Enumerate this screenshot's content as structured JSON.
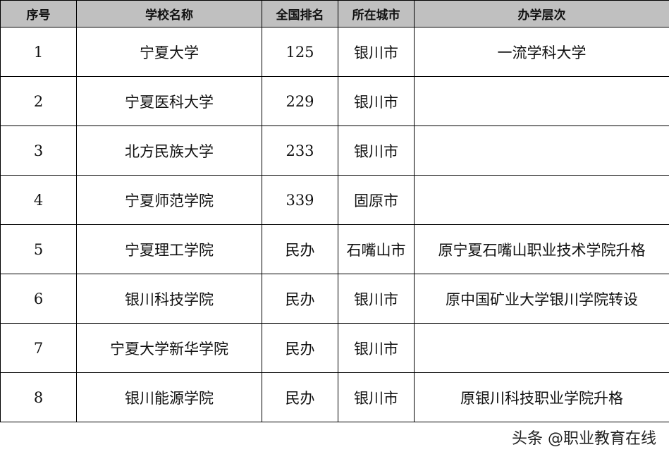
{
  "headers": [
    "序号",
    "学校名称",
    "全国排名",
    "所在城市",
    "办学层次"
  ],
  "rows": [
    [
      "1",
      "宁夏大学",
      "125",
      "银川市",
      "一流学科大学"
    ],
    [
      "2",
      "宁夏医科大学",
      "229",
      "银川市",
      ""
    ],
    [
      "3",
      "北方民族大学",
      "233",
      "银川市",
      ""
    ],
    [
      "4",
      "宁夏师范学院",
      "339",
      "固原市",
      ""
    ],
    [
      "5",
      "宁夏理工学院",
      "民办",
      "石嘴山市",
      "原宁夏石嘴山职业技术学院升格"
    ],
    [
      "6",
      "银川科技学院",
      "民办",
      "银川市",
      "原中国矿业大学银川学院转设"
    ],
    [
      "7",
      "宁夏大学新华学院",
      "民办",
      "银川市",
      ""
    ],
    [
      "8",
      "银川能源学院",
      "民办",
      "银川市",
      "原银川科技职业学院升格"
    ]
  ],
  "watermark": "头条 @职业教育在线",
  "colors": {
    "header_bg": "#c0c0c0"
  }
}
